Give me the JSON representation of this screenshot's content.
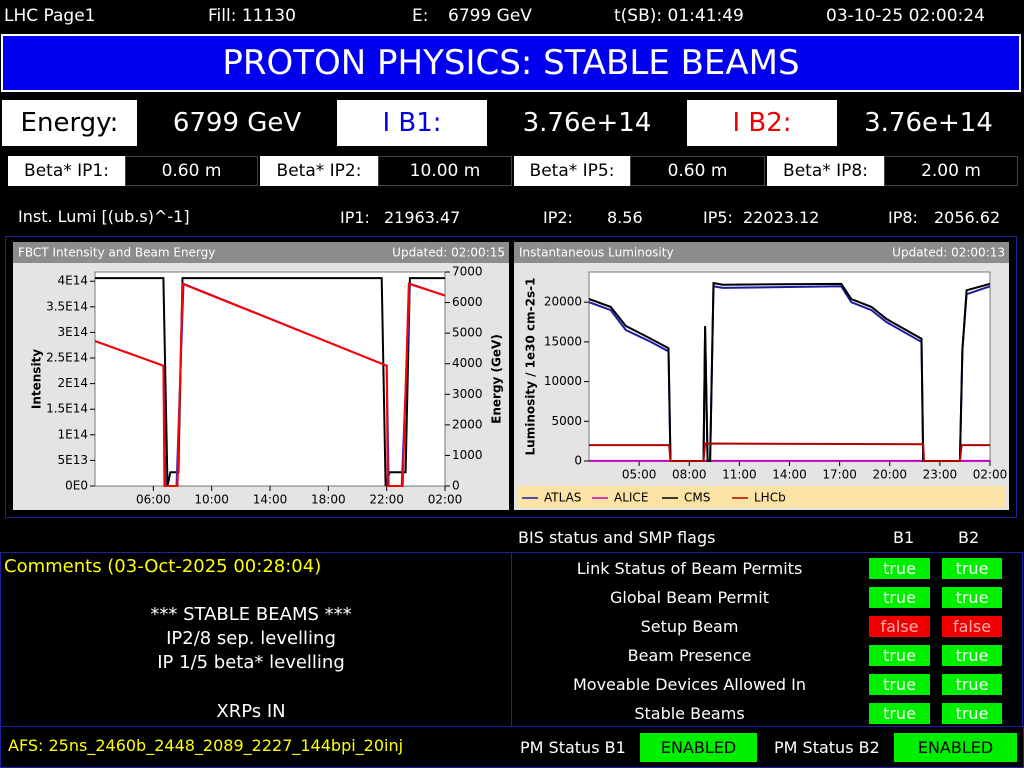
{
  "header": {
    "page": "LHC Page1",
    "fill": "Fill: 11130",
    "energy_label": "E:",
    "energy": "6799 GeV",
    "tsb": "t(SB): 01:41:49",
    "datetime": "03-10-25 02:00:24"
  },
  "banner": "PROTON PHYSICS: STABLE BEAMS",
  "energy_row": {
    "energy_label": "Energy:",
    "energy": "6799 GeV",
    "ib1_label": "I B1:",
    "ib1": "3.76e+14",
    "ib2_label": "I B2:",
    "ib2": "3.76e+14"
  },
  "beta": [
    {
      "label": "Beta* IP1:",
      "value": "0.60 m"
    },
    {
      "label": "Beta* IP2:",
      "value": "10.00 m"
    },
    {
      "label": "Beta* IP5:",
      "value": "0.60 m"
    },
    {
      "label": "Beta* IP8:",
      "value": "2.00 m"
    }
  ],
  "lumi": {
    "label": "Inst. Lumi [(ub.s)^-1]",
    "ips": [
      {
        "label": "IP1:",
        "value": "21963.47"
      },
      {
        "label": "IP2:",
        "value": "8.56"
      },
      {
        "label": "IP5:",
        "value": "22023.12"
      },
      {
        "label": "IP8:",
        "value": "2056.62"
      }
    ]
  },
  "chart_data": [
    {
      "type": "line",
      "title": "FBCT Intensity and Beam Energy",
      "updated": "Updated: 02:00:15",
      "y_label": "Intensity",
      "y2_label": "Energy (GeV)",
      "xlim": [
        2,
        26
      ],
      "xticks": [
        {
          "value": 6,
          "label": "06:00"
        },
        {
          "value": 10,
          "label": "10:00"
        },
        {
          "value": 14,
          "label": "14:00"
        },
        {
          "value": 18,
          "label": "18:00"
        },
        {
          "value": 22,
          "label": "22:00"
        },
        {
          "value": 26,
          "label": "02:00"
        }
      ],
      "ylim": [
        0,
        418000000000000.0
      ],
      "yticks": [
        {
          "value": 0,
          "label": "0E0"
        },
        {
          "value": 50000000000000.0,
          "label": "5E13"
        },
        {
          "value": 100000000000000.0,
          "label": "1E14"
        },
        {
          "value": 150000000000000.0,
          "label": "1.5E14"
        },
        {
          "value": 200000000000000.0,
          "label": "2E14"
        },
        {
          "value": 250000000000000.0,
          "label": "2.5E14"
        },
        {
          "value": 300000000000000.0,
          "label": "3E14"
        },
        {
          "value": 350000000000000.0,
          "label": "3.5E14"
        },
        {
          "value": 400000000000000.0,
          "label": "4E14"
        }
      ],
      "y2lim": [
        0,
        7000
      ],
      "y2ticks": [
        0,
        1000,
        2000,
        3000,
        4000,
        5000,
        6000,
        7000
      ],
      "grid": false,
      "series": [
        {
          "color": "#000000",
          "axis": "y2",
          "x": [
            2,
            6.69,
            6.97,
            7.17,
            7.72,
            8.0,
            21.66,
            21.93,
            22.2,
            23.3,
            23.59,
            26
          ],
          "values": [
            6800,
            6800,
            0,
            450,
            450,
            6800,
            6800,
            0,
            450,
            450,
            6800,
            6800
          ]
        },
        {
          "color": "#3030c8",
          "x": [
            2,
            6.69,
            6.83,
            7.59,
            8.07,
            22.0,
            22.14,
            23.03,
            23.59,
            26
          ],
          "values": [
            283000000000000.0,
            235000000000000.0,
            0,
            0,
            395000000000000.0,
            235000000000000.0,
            0,
            0,
            395000000000000.0,
            372000000000000.0
          ]
        },
        {
          "color": "#ff0000",
          "x": [
            2,
            6.69,
            6.76,
            7.66,
            8.0,
            22.0,
            22.07,
            23.1,
            23.52,
            26
          ],
          "values": [
            283000000000000.0,
            235000000000000.0,
            0,
            0,
            395000000000000.0,
            235000000000000.0,
            0,
            0,
            395000000000000.0,
            372000000000000.0
          ]
        }
      ]
    },
    {
      "type": "line",
      "title": "Instantaneous Luminosity",
      "updated": "Updated: 02:00:13",
      "y_label": "Luminosity / 1e30 cm-2s-1",
      "xlim": [
        2,
        26
      ],
      "xticks": [
        {
          "value": 5,
          "label": "05:00"
        },
        {
          "value": 8,
          "label": "08:00"
        },
        {
          "value": 11,
          "label": "11:00"
        },
        {
          "value": 14,
          "label": "14:00"
        },
        {
          "value": 17,
          "label": "17:00"
        },
        {
          "value": 20,
          "label": "20:00"
        },
        {
          "value": 23,
          "label": "23:00"
        },
        {
          "value": 26,
          "label": "02:00"
        }
      ],
      "ylim": [
        0,
        23800
      ],
      "yticks": [
        0,
        5000,
        10000,
        15000,
        20000
      ],
      "grid": false,
      "legend": "bottom",
      "series": [
        {
          "name": "ATLAS",
          "color": "#1a1aa0",
          "x": [
            2,
            3.3,
            4.2,
            5.7,
            6.76,
            6.88,
            8.85,
            8.95,
            9.1,
            9.25,
            9.45,
            10,
            17.1,
            17.7,
            18.9,
            19.8,
            21.9,
            22.0,
            24.2,
            24.35,
            24.6,
            26
          ],
          "values": [
            20000,
            19000,
            16500,
            15000,
            13800,
            0,
            0,
            16500,
            0,
            0,
            22000,
            21800,
            22000,
            20000,
            19000,
            17500,
            15000,
            0,
            0,
            14000,
            21000,
            22000
          ]
        },
        {
          "name": "ALICE",
          "color": "#c000c0",
          "x": [
            2,
            6.8,
            6.88,
            8.85,
            8.95,
            22.0,
            22.05,
            24.2,
            24.3,
            26
          ],
          "values": [
            9,
            9,
            0,
            0,
            9,
            9,
            0,
            0,
            9,
            9
          ]
        },
        {
          "name": "CMS",
          "color": "#000000",
          "x": [
            2,
            3.3,
            4.2,
            5.7,
            6.76,
            6.88,
            8.85,
            8.95,
            9.1,
            9.25,
            9.45,
            10,
            17.1,
            17.7,
            18.9,
            19.8,
            21.9,
            22.0,
            24.2,
            24.35,
            24.6,
            26
          ],
          "values": [
            20400,
            19400,
            17000,
            15400,
            14200,
            0,
            0,
            17000,
            0,
            0,
            22400,
            22200,
            22300,
            20400,
            19400,
            17900,
            15400,
            0,
            0,
            14000,
            21500,
            22300
          ]
        },
        {
          "name": "LHCb",
          "color": "#b00000",
          "x": [
            2,
            6.8,
            6.88,
            8.85,
            8.95,
            22.0,
            22.05,
            24.2,
            24.3,
            26
          ],
          "values": [
            2000,
            2000,
            0,
            0,
            2200,
            2100,
            0,
            0,
            2000,
            2000
          ]
        }
      ]
    }
  ],
  "flags": {
    "title": "BIS status and SMP flags",
    "b1": "B1",
    "b2": "B2",
    "rows": [
      {
        "name": "Link Status of Beam Permits",
        "b1": "true",
        "b1_color": "#00ee00",
        "b2": "true",
        "b2_color": "#00ee00"
      },
      {
        "name": "Global Beam Permit",
        "b1": "true",
        "b1_color": "#00ee00",
        "b2": "true",
        "b2_color": "#00ee00"
      },
      {
        "name": "Setup Beam",
        "b1": "false",
        "b1_color": "#ee0000",
        "b2": "false",
        "b2_color": "#ee0000"
      },
      {
        "name": "Beam Presence",
        "b1": "true",
        "b1_color": "#00ee00",
        "b2": "true",
        "b2_color": "#00ee00"
      },
      {
        "name": "Moveable Devices Allowed In",
        "b1": "true",
        "b1_color": "#00ee00",
        "b2": "true",
        "b2_color": "#00ee00"
      },
      {
        "name": "Stable Beams",
        "b1": "true",
        "b1_color": "#00ee00",
        "b2": "true",
        "b2_color": "#00ee00"
      }
    ]
  },
  "comments": {
    "title": "Comments (03-Oct-2025 00:28:04)",
    "lines": [
      "*** STABLE BEAMS ***",
      "IP2/8 sep. levelling",
      "IP 1/5 beta* levelling"
    ],
    "note": "XRPs IN"
  },
  "footer": {
    "afs": "AFS: 25ns_2460b_2448_2089_2227_144bpi_20inj",
    "pm_b1_label": "PM Status B1",
    "pm_b1": "ENABLED",
    "pm_b2_label": "PM Status B2",
    "pm_b2": "ENABLED"
  }
}
